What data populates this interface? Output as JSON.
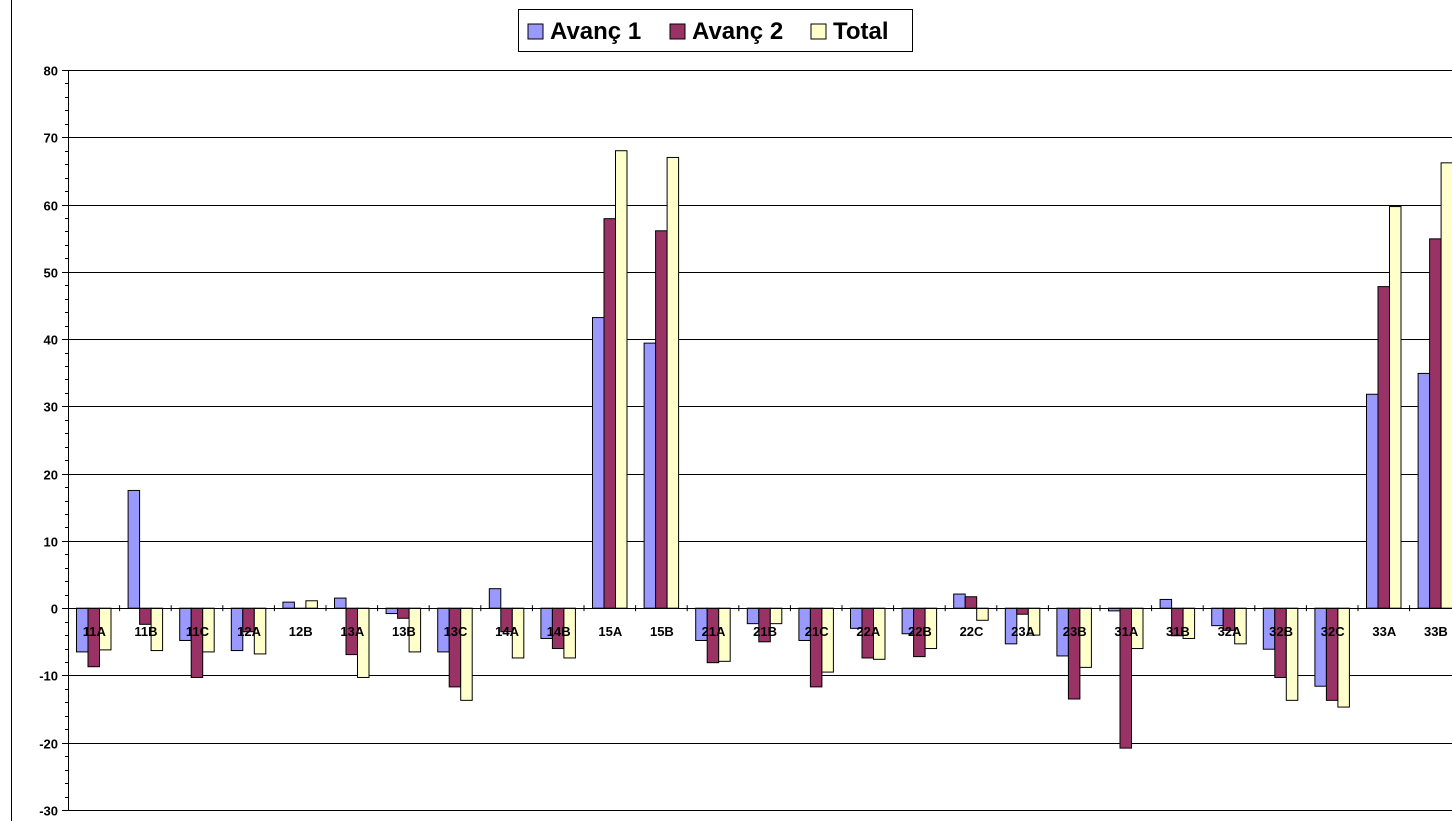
{
  "chart_data": {
    "type": "bar",
    "title": "",
    "xlabel": "",
    "ylabel": "",
    "ylim": [
      -30,
      80
    ],
    "yticks": [
      80,
      70,
      60,
      50,
      40,
      30,
      20,
      10,
      0,
      -10,
      -20,
      -30
    ],
    "grid": true,
    "legend_position": "top-center",
    "categories": [
      "11A",
      "11B",
      "11C",
      "12A",
      "12B",
      "13A",
      "13B",
      "13C",
      "14A",
      "14B",
      "15A",
      "15B",
      "21A",
      "21B",
      "21C",
      "22A",
      "22B",
      "22C",
      "23A",
      "23B",
      "31A",
      "31B",
      "32A",
      "32B",
      "32C",
      "33A",
      "33B"
    ],
    "series": [
      {
        "name": "Avanç 1",
        "color": "#9999ff",
        "values": [
          -6.5,
          17.5,
          -4.8,
          -6.3,
          0.9,
          1.5,
          -0.8,
          -6.5,
          2.9,
          -4.5,
          43.2,
          39.4,
          -4.8,
          -2.3,
          -4.8,
          -3.0,
          -3.8,
          2.1,
          -5.3,
          -7.1,
          -0.4,
          1.3,
          -2.6,
          -6.1,
          -11.6,
          31.8,
          34.9
        ]
      },
      {
        "name": "Avanç 2",
        "color": "#993366",
        "values": [
          -8.7,
          -2.4,
          -10.3,
          -3.5,
          0,
          -6.9,
          -1.5,
          -11.7,
          -3.5,
          -6.0,
          57.9,
          56.1,
          -8.1,
          -5.0,
          -11.7,
          -7.4,
          -7.2,
          1.7,
          -0.9,
          -13.5,
          -20.8,
          -4.1,
          -3.3,
          -10.3,
          -13.7,
          47.8,
          54.9
        ]
      },
      {
        "name": "Total",
        "color": "#ffffcc",
        "values": [
          -6.2,
          -6.3,
          -6.5,
          -6.8,
          1.1,
          -10.3,
          -6.5,
          -13.7,
          -7.4,
          -7.4,
          68.0,
          67.0,
          -7.9,
          -2.3,
          -9.5,
          -7.6,
          -6.0,
          -1.8,
          -4.0,
          -8.8,
          -6.0,
          -4.5,
          -5.3,
          -13.7,
          -14.7,
          59.7,
          66.2
        ]
      }
    ]
  }
}
